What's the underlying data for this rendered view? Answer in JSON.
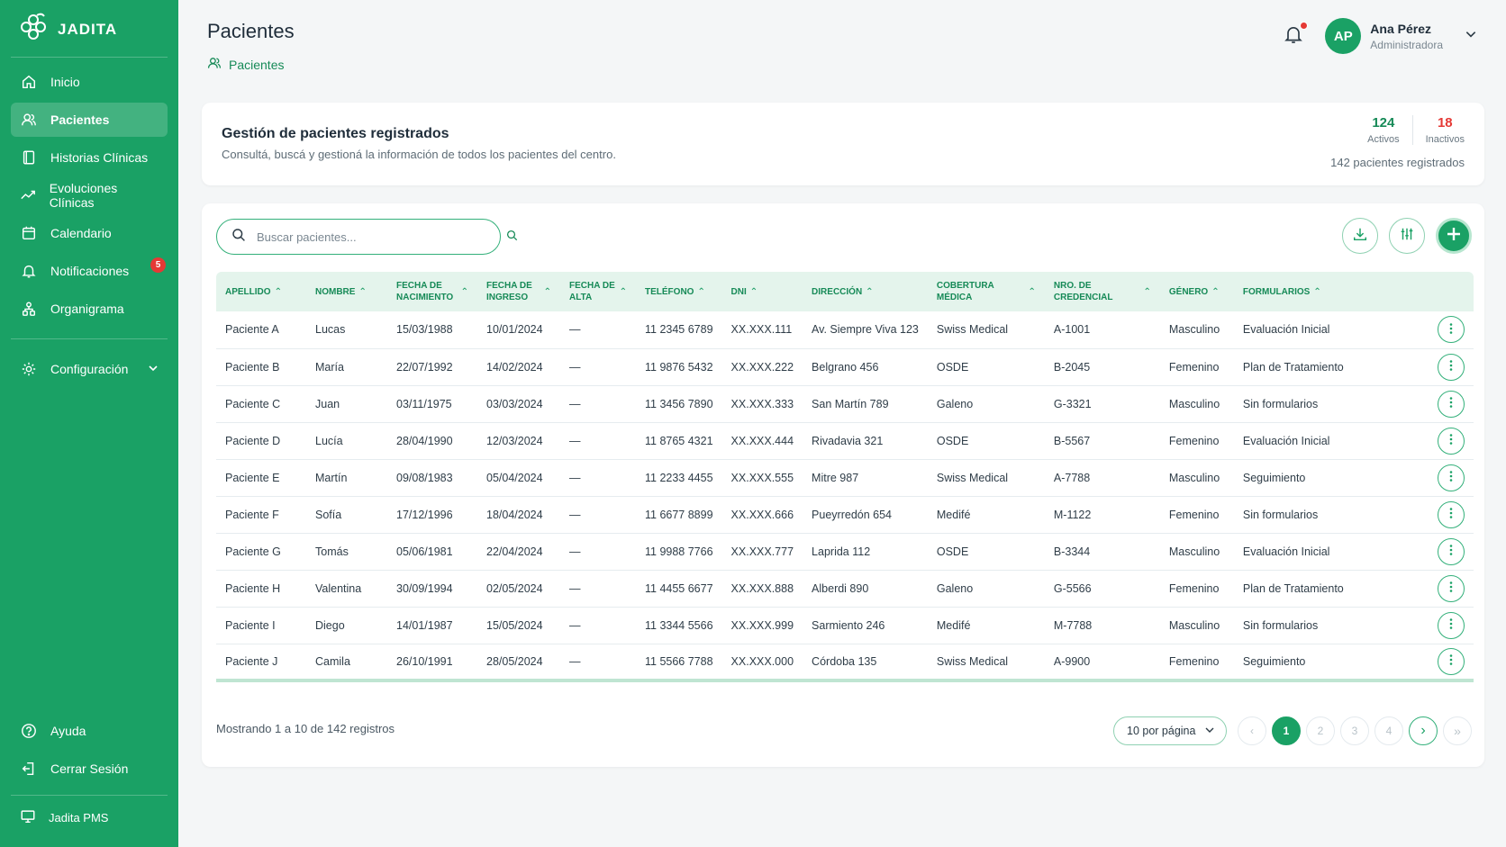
{
  "app": {
    "brand": "JADITA",
    "footer_label": "Jadita PMS"
  },
  "sidebar": {
    "items": [
      {
        "label": "Inicio",
        "icon": "home-icon"
      },
      {
        "label": "Pacientes",
        "icon": "users-icon",
        "active": true
      },
      {
        "label": "Historias Clínicas",
        "icon": "book-icon"
      },
      {
        "label": "Evoluciones Clínicas",
        "icon": "trend-icon"
      },
      {
        "label": "Calendario",
        "icon": "calendar-icon"
      },
      {
        "label": "Notificaciones",
        "icon": "bell-icon",
        "badge": "5"
      },
      {
        "label": "Organigrama",
        "icon": "org-chart-icon"
      }
    ],
    "config_label": "Configuración",
    "help_label": "Ayuda",
    "logout_label": "Cerrar Sesión"
  },
  "header": {
    "title": "Pacientes",
    "breadcrumb": "Pacientes",
    "user": {
      "initials": "AP",
      "name": "Ana Pérez",
      "role": "Administradora"
    }
  },
  "summary": {
    "title": "Gestión de pacientes registrados",
    "description": "Consultá, buscá y gestioná la información de todos los pacientes del centro.",
    "active_count": "124",
    "active_label": "Activos",
    "inactive_count": "18",
    "inactive_label": "Inactivos",
    "total_text": "142 pacientes registrados"
  },
  "search": {
    "placeholder": "Buscar pacientes..."
  },
  "table": {
    "columns": [
      "APELLIDO",
      "NOMBRE",
      "FECHA DE NACIMIENTO",
      "FECHA DE INGRESO",
      "FECHA DE ALTA",
      "TELÉFONO",
      "DNI",
      "DIRECCIÓN",
      "COBERTURA MÉDICA",
      "NRO. DE CREDENCIAL",
      "GÉNERO",
      "FORMULARIOS"
    ],
    "rows": [
      [
        "Paciente A",
        "Lucas",
        "15/03/1988",
        "10/01/2024",
        "—",
        "11 2345 6789",
        "XX.XXX.111",
        "Av. Siempre Viva 123",
        "Swiss Medical",
        "A-1001",
        "Masculino",
        "Evaluación Inicial"
      ],
      [
        "Paciente B",
        "María",
        "22/07/1992",
        "14/02/2024",
        "—",
        "11 9876 5432",
        "XX.XXX.222",
        "Belgrano 456",
        "OSDE",
        "B-2045",
        "Femenino",
        "Plan de Tratamiento"
      ],
      [
        "Paciente C",
        "Juan",
        "03/11/1975",
        "03/03/2024",
        "—",
        "11 3456 7890",
        "XX.XXX.333",
        "San Martín 789",
        "Galeno",
        "G-3321",
        "Masculino",
        "Sin formularios"
      ],
      [
        "Paciente D",
        "Lucía",
        "28/04/1990",
        "12/03/2024",
        "—",
        "11 8765 4321",
        "XX.XXX.444",
        "Rivadavia 321",
        "OSDE",
        "B-5567",
        "Femenino",
        "Evaluación Inicial"
      ],
      [
        "Paciente E",
        "Martín",
        "09/08/1983",
        "05/04/2024",
        "—",
        "11 2233 4455",
        "XX.XXX.555",
        "Mitre 987",
        "Swiss Medical",
        "A-7788",
        "Masculino",
        "Seguimiento"
      ],
      [
        "Paciente F",
        "Sofía",
        "17/12/1996",
        "18/04/2024",
        "—",
        "11 6677 8899",
        "XX.XXX.666",
        "Pueyrredón 654",
        "Medifé",
        "M-1122",
        "Femenino",
        "Sin formularios"
      ],
      [
        "Paciente G",
        "Tomás",
        "05/06/1981",
        "22/04/2024",
        "—",
        "11 9988 7766",
        "XX.XXX.777",
        "Laprida 112",
        "OSDE",
        "B-3344",
        "Masculino",
        "Evaluación Inicial"
      ],
      [
        "Paciente H",
        "Valentina",
        "30/09/1994",
        "02/05/2024",
        "—",
        "11 4455 6677",
        "XX.XXX.888",
        "Alberdi 890",
        "Galeno",
        "G-5566",
        "Femenino",
        "Plan de Tratamiento"
      ],
      [
        "Paciente I",
        "Diego",
        "14/01/1987",
        "15/05/2024",
        "—",
        "11 3344 5566",
        "XX.XXX.999",
        "Sarmiento 246",
        "Medifé",
        "M-7788",
        "Masculino",
        "Sin formularios"
      ],
      [
        "Paciente J",
        "Camila",
        "26/10/1991",
        "28/05/2024",
        "—",
        "11 5566 7788",
        "XX.XXX.000",
        "Córdoba 135",
        "Swiss Medical",
        "A-9900",
        "Femenino",
        "Seguimiento"
      ]
    ]
  },
  "footer": {
    "showing_text": "Mostrando 1 a 10 de 142 registros",
    "per_page": "10 por página",
    "pages": [
      "1",
      "2",
      "3",
      "4"
    ],
    "current_page": "1"
  },
  "colors": {
    "brand": "#1aa165",
    "alert": "#e53935",
    "active_stat": "#168a57"
  }
}
